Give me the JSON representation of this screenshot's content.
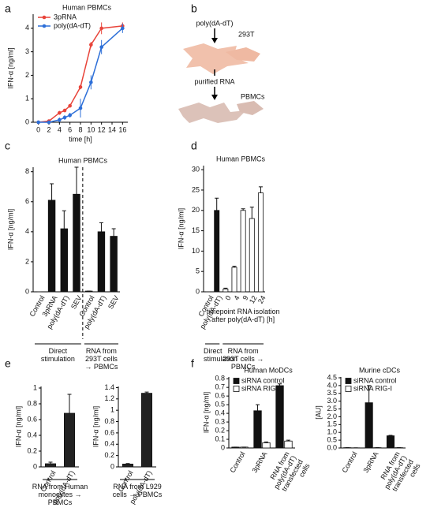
{
  "panel_labels": [
    "a",
    "b",
    "c",
    "d",
    "e",
    "f"
  ],
  "diagram": {
    "steps": [
      "poly(dA-dT)",
      "purified RNA"
    ],
    "cells": [
      "293T",
      "PBMCs"
    ]
  },
  "chart_data": [
    {
      "type": "line",
      "title": "Human PBMCs",
      "xlabel": "time [h]",
      "ylabel": "IFN-α [ng/ml]",
      "x": [
        0,
        2,
        4,
        5,
        6,
        8,
        10,
        12,
        16
      ],
      "xlim": [
        -1,
        17
      ],
      "xticks": [
        0,
        2,
        4,
        6,
        8,
        10,
        12,
        14,
        16
      ],
      "ylim": [
        0,
        4.6
      ],
      "yticks": [
        0,
        1,
        2,
        3,
        4
      ],
      "series": [
        {
          "name": "3pRNA",
          "color": "#e8443a",
          "values": [
            0,
            0.05,
            0.4,
            0.5,
            0.7,
            1.5,
            3.3,
            4.0,
            4.1
          ],
          "errors": [
            0,
            0,
            0.08,
            0.05,
            0.08,
            0.1,
            0.12,
            0.25,
            0.15
          ]
        },
        {
          "name": "poly(dA-dT)",
          "color": "#2d6fd8",
          "values": [
            0,
            0,
            0.1,
            0.2,
            0.3,
            0.6,
            1.7,
            3.2,
            4.0
          ],
          "errors": [
            0,
            0,
            0.1,
            0.1,
            0.1,
            0.4,
            0.3,
            0.3,
            0.2
          ]
        }
      ]
    },
    {
      "type": "bar",
      "title": "Human PBMCs",
      "ylabel": "IFN-α [ng/ml]",
      "categories": [
        "Control",
        "3pRNA",
        "poly(dA-dT)",
        "SEV",
        "Control",
        "poly(dA-dT)",
        "SEV"
      ],
      "values": [
        0,
        6.1,
        4.2,
        6.5,
        0.05,
        4.0,
        3.7
      ],
      "errors": [
        0,
        1.1,
        1.2,
        1.8,
        0,
        0.6,
        0.5
      ],
      "color": "#111111",
      "ylim": [
        0,
        8.3
      ],
      "yticks": [
        0,
        2,
        4,
        6,
        8
      ],
      "group_labels": [
        "Direct stimulation",
        "RNA from 293T cells → PBMCs"
      ]
    },
    {
      "type": "bar",
      "title": "Human PBMCs",
      "ylabel": "IFN-α [ng/ml]",
      "xlabel": "timepoint RNA isolation after poly(dA-dT) [h]",
      "categories": [
        "Control",
        "poly(dA-dT)",
        "0",
        "4",
        "9",
        "12",
        "24"
      ],
      "values": [
        0,
        20,
        0.7,
        6,
        20,
        18,
        24.3
      ],
      "errors": [
        0,
        3,
        0.2,
        0.3,
        0.4,
        2.8,
        1.5
      ],
      "colors": [
        "#111111",
        "#111111",
        "#ffffff",
        "#ffffff",
        "#ffffff",
        "#ffffff",
        "#ffffff"
      ],
      "ylim": [
        0,
        31
      ],
      "yticks": [
        0,
        5,
        10,
        15,
        20,
        25,
        30
      ],
      "group_labels": [
        "Direct stimulation",
        "RNA from 293T cells → PBMCs"
      ]
    },
    {
      "type": "bar",
      "ylabel": "IFN-α [ng/ml]",
      "categories": [
        "Control",
        "poly(dA-dT)"
      ],
      "values": [
        0.04,
        0.68
      ],
      "errors": [
        0.02,
        0.24
      ],
      "color": "#222222",
      "ylim": [
        0,
        1.02
      ],
      "yticks": [
        0,
        0.2,
        0.4,
        0.6,
        0.8,
        1
      ],
      "group_labels": [
        "RNA from Human monocytes → PBMCs"
      ]
    },
    {
      "type": "bar",
      "ylabel": "IFN-α [ng/ml]",
      "categories": [
        "Control",
        "poly(dA-dT)"
      ],
      "values": [
        0.05,
        1.3
      ],
      "errors": [
        0.01,
        0.02
      ],
      "color": "#222222",
      "ylim": [
        0,
        1.42
      ],
      "yticks": [
        0,
        0.2,
        0.4,
        0.6,
        0.8,
        1,
        1.2,
        1.4
      ],
      "group_labels": [
        "RNA from L929 cells → PBMCs"
      ]
    },
    {
      "type": "bar",
      "title": "Human MoDCs",
      "ylabel": "IFN-α [ng/ml]",
      "categories": [
        "Control",
        "3pRNA",
        "RNA from poly(dA-dT) transfected cells"
      ],
      "ylim": [
        0,
        0.82
      ],
      "yticks": [
        0,
        0.1,
        0.2,
        0.3,
        0.4,
        0.5,
        0.6,
        0.7,
        0.8
      ],
      "series": [
        {
          "name": "siRNA control",
          "color": "#111111",
          "values": [
            0.01,
            0.43,
            0.72
          ],
          "errors": [
            0,
            0.07,
            0.02
          ]
        },
        {
          "name": "siRNA RIG-I",
          "color": "#ffffff",
          "values": [
            0.01,
            0.06,
            0.08
          ],
          "errors": [
            0,
            0.01,
            0.01
          ]
        }
      ]
    },
    {
      "type": "bar",
      "title": "Murine cDCs",
      "ylabel": "[AU]",
      "categories": [
        "Control",
        "3pRNA",
        "RNA from poly(dA-dT) transfected cells"
      ],
      "ylim": [
        0,
        4.55
      ],
      "yticks": [
        {
          "value": 0,
          "label": "0.0"
        },
        0.5,
        {
          "value": 1,
          "label": "1.0"
        },
        1.5,
        {
          "value": 2,
          "label": "2.0"
        },
        2.5,
        {
          "value": 3,
          "label": "3.0"
        },
        3.5,
        {
          "value": 4,
          "label": "4.0"
        },
        4.5
      ],
      "series": [
        {
          "name": "siRNA control",
          "color": "#111111",
          "values": [
            0.02,
            2.9,
            0.78
          ],
          "errors": [
            0,
            1.1,
            0.03
          ]
        },
        {
          "name": "siRNA RIG-I",
          "color": "#ffffff",
          "values": [
            0.01,
            0.02,
            0.02
          ],
          "errors": [
            0,
            0,
            0
          ]
        }
      ]
    }
  ]
}
